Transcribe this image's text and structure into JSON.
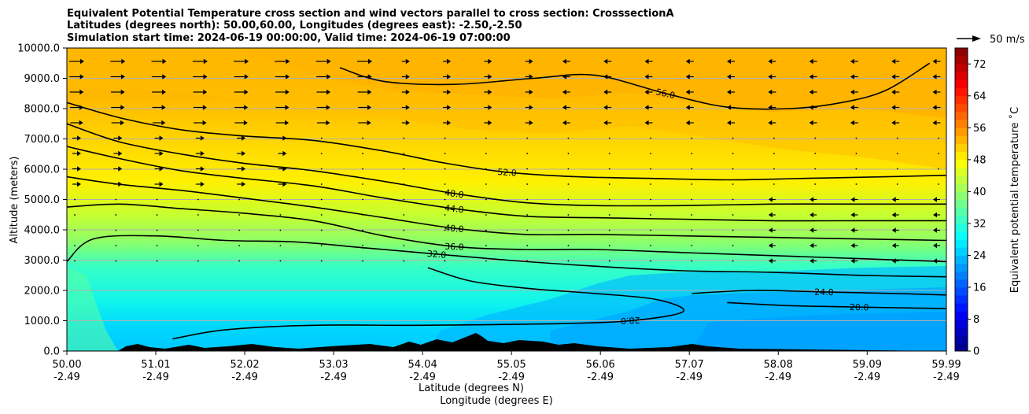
{
  "chart_data": {
    "type": "heatmap",
    "title": [
      "Equivalent Potential Temperature cross section and wind vectors parallel to cross section: CrosssectionA",
      "Latitudes (degrees north): 50.00,60.00, Longitudes (degrees east): -2.50,-2.50",
      "Simulation start time: 2024-06-19 00:00:00, Valid time: 2024-06-19 07:00:00"
    ],
    "ylabel": "Altitude (meters)",
    "xlabel": "Latitude (degrees N)",
    "xlabel2": "Longitude (degrees E)",
    "ylim": [
      0,
      10000
    ],
    "xlim": [
      50.0,
      59.99
    ],
    "yticks": [
      "0.0",
      "1000.0",
      "2000.0",
      "3000.0",
      "4000.0",
      "5000.0",
      "6000.0",
      "7000.0",
      "8000.0",
      "9000.0",
      "10000.0"
    ],
    "ytick_values": [
      0,
      1000,
      2000,
      3000,
      4000,
      5000,
      6000,
      7000,
      8000,
      9000,
      10000
    ],
    "xticks": [
      {
        "lat": "50.00",
        "lon": "-2.49",
        "v": 50.0
      },
      {
        "lat": "51.01",
        "lon": "-2.49",
        "v": 51.01
      },
      {
        "lat": "52.02",
        "lon": "-2.49",
        "v": 52.02
      },
      {
        "lat": "53.03",
        "lon": "-2.49",
        "v": 53.03
      },
      {
        "lat": "54.04",
        "lon": "-2.49",
        "v": 54.04
      },
      {
        "lat": "55.05",
        "lon": "-2.49",
        "v": 55.05
      },
      {
        "lat": "56.06",
        "lon": "-2.49",
        "v": 56.06
      },
      {
        "lat": "57.07",
        "lon": "-2.49",
        "v": 57.07
      },
      {
        "lat": "58.08",
        "lon": "-2.49",
        "v": 58.08
      },
      {
        "lat": "59.09",
        "lon": "-2.49",
        "v": 59.09
      },
      {
        "lat": "59.99",
        "lon": "-2.49",
        "v": 59.99
      }
    ],
    "colorbar": {
      "label": "Equivalent potential temperature ˚C",
      "range": [
        0,
        76
      ],
      "ticks": [
        "0",
        "8",
        "16",
        "24",
        "32",
        "40",
        "48",
        "56",
        "64",
        "72"
      ],
      "tick_values": [
        0,
        8,
        16,
        24,
        32,
        40,
        48,
        56,
        64,
        72
      ]
    },
    "quiver_key": "50 m/s",
    "contours": [
      {
        "level": 56,
        "label": "56.0",
        "points": [
          [
            53.1,
            9350
          ],
          [
            53.6,
            8900
          ],
          [
            54.4,
            8800
          ],
          [
            55.3,
            9000
          ],
          [
            56.0,
            9100
          ],
          [
            56.8,
            8500
          ],
          [
            57.5,
            8050
          ],
          [
            58.2,
            8000
          ],
          [
            58.8,
            8200
          ],
          [
            59.3,
            8600
          ],
          [
            59.8,
            9500
          ]
        ]
      },
      {
        "level": 52,
        "label": "52.0",
        "points": [
          [
            50.0,
            8200
          ],
          [
            50.6,
            7700
          ],
          [
            51.3,
            7300
          ],
          [
            52.0,
            7100
          ],
          [
            52.8,
            6950
          ],
          [
            53.6,
            6600
          ],
          [
            54.3,
            6200
          ],
          [
            55.0,
            5900
          ],
          [
            55.8,
            5750
          ],
          [
            56.6,
            5700
          ],
          [
            57.5,
            5650
          ],
          [
            58.4,
            5700
          ],
          [
            59.3,
            5750
          ],
          [
            59.99,
            5800
          ]
        ]
      },
      {
        "level": 48,
        "label": "48.0",
        "points": [
          [
            50.0,
            7500
          ],
          [
            50.6,
            6900
          ],
          [
            51.3,
            6500
          ],
          [
            52.0,
            6200
          ],
          [
            52.8,
            5950
          ],
          [
            53.6,
            5600
          ],
          [
            54.4,
            5200
          ],
          [
            55.2,
            4900
          ],
          [
            56.0,
            4800
          ],
          [
            57.0,
            4800
          ],
          [
            58.0,
            4850
          ],
          [
            59.0,
            4850
          ],
          [
            59.99,
            4850
          ]
        ]
      },
      {
        "level": 44,
        "label": "44.0",
        "points": [
          [
            50.0,
            6750
          ],
          [
            50.6,
            6350
          ],
          [
            51.3,
            5950
          ],
          [
            52.0,
            5700
          ],
          [
            52.8,
            5450
          ],
          [
            53.6,
            5050
          ],
          [
            54.4,
            4700
          ],
          [
            55.2,
            4450
          ],
          [
            56.0,
            4400
          ],
          [
            57.0,
            4350
          ],
          [
            58.0,
            4300
          ],
          [
            59.0,
            4300
          ],
          [
            59.99,
            4300
          ]
        ]
      },
      {
        "level": 40,
        "label": "40.0",
        "points": [
          [
            50.0,
            5750
          ],
          [
            50.6,
            5500
          ],
          [
            51.3,
            5300
          ],
          [
            52.0,
            5050
          ],
          [
            52.8,
            4750
          ],
          [
            53.6,
            4400
          ],
          [
            54.4,
            4050
          ],
          [
            55.2,
            3850
          ],
          [
            56.0,
            3850
          ],
          [
            57.0,
            3800
          ],
          [
            58.0,
            3750
          ],
          [
            59.0,
            3700
          ],
          [
            59.99,
            3650
          ]
        ]
      },
      {
        "level": 36,
        "label": "36.0",
        "points": [
          [
            50.0,
            4750
          ],
          [
            50.6,
            4850
          ],
          [
            51.3,
            4700
          ],
          [
            52.0,
            4550
          ],
          [
            52.8,
            4300
          ],
          [
            53.6,
            3800
          ],
          [
            54.4,
            3450
          ],
          [
            55.2,
            3350
          ],
          [
            56.0,
            3350
          ],
          [
            57.0,
            3250
          ],
          [
            58.0,
            3150
          ],
          [
            59.0,
            3050
          ],
          [
            59.99,
            2950
          ]
        ]
      },
      {
        "level": 32,
        "label": "32.0",
        "points": [
          [
            50.0,
            2950
          ],
          [
            50.3,
            3700
          ],
          [
            51.0,
            3800
          ],
          [
            51.8,
            3650
          ],
          [
            52.6,
            3600
          ],
          [
            53.4,
            3400
          ],
          [
            54.2,
            3200
          ],
          [
            55.0,
            3000
          ],
          [
            56.0,
            2800
          ],
          [
            57.0,
            2650
          ],
          [
            58.0,
            2600
          ],
          [
            59.0,
            2500
          ],
          [
            59.99,
            2450
          ]
        ]
      },
      {
        "level": 28,
        "label": "28.0",
        "points": [
          [
            54.1,
            2750
          ],
          [
            54.6,
            2300
          ],
          [
            55.3,
            2050
          ],
          [
            56.0,
            1900
          ],
          [
            56.7,
            1700
          ],
          [
            57.0,
            1300
          ],
          [
            56.4,
            1000
          ],
          [
            55.5,
            900
          ],
          [
            54.0,
            850
          ],
          [
            52.8,
            850
          ],
          [
            51.8,
            700
          ],
          [
            51.2,
            400
          ]
        ]
      },
      {
        "level": 24,
        "label": "24.0",
        "points": [
          [
            57.1,
            1900
          ],
          [
            57.8,
            2000
          ],
          [
            58.6,
            1950
          ],
          [
            59.4,
            1900
          ],
          [
            59.99,
            1850
          ]
        ]
      },
      {
        "level": 20,
        "label": "20.0",
        "points": [
          [
            57.5,
            1600
          ],
          [
            58.2,
            1500
          ],
          [
            59.0,
            1450
          ],
          [
            59.99,
            1400
          ]
        ]
      }
    ]
  }
}
